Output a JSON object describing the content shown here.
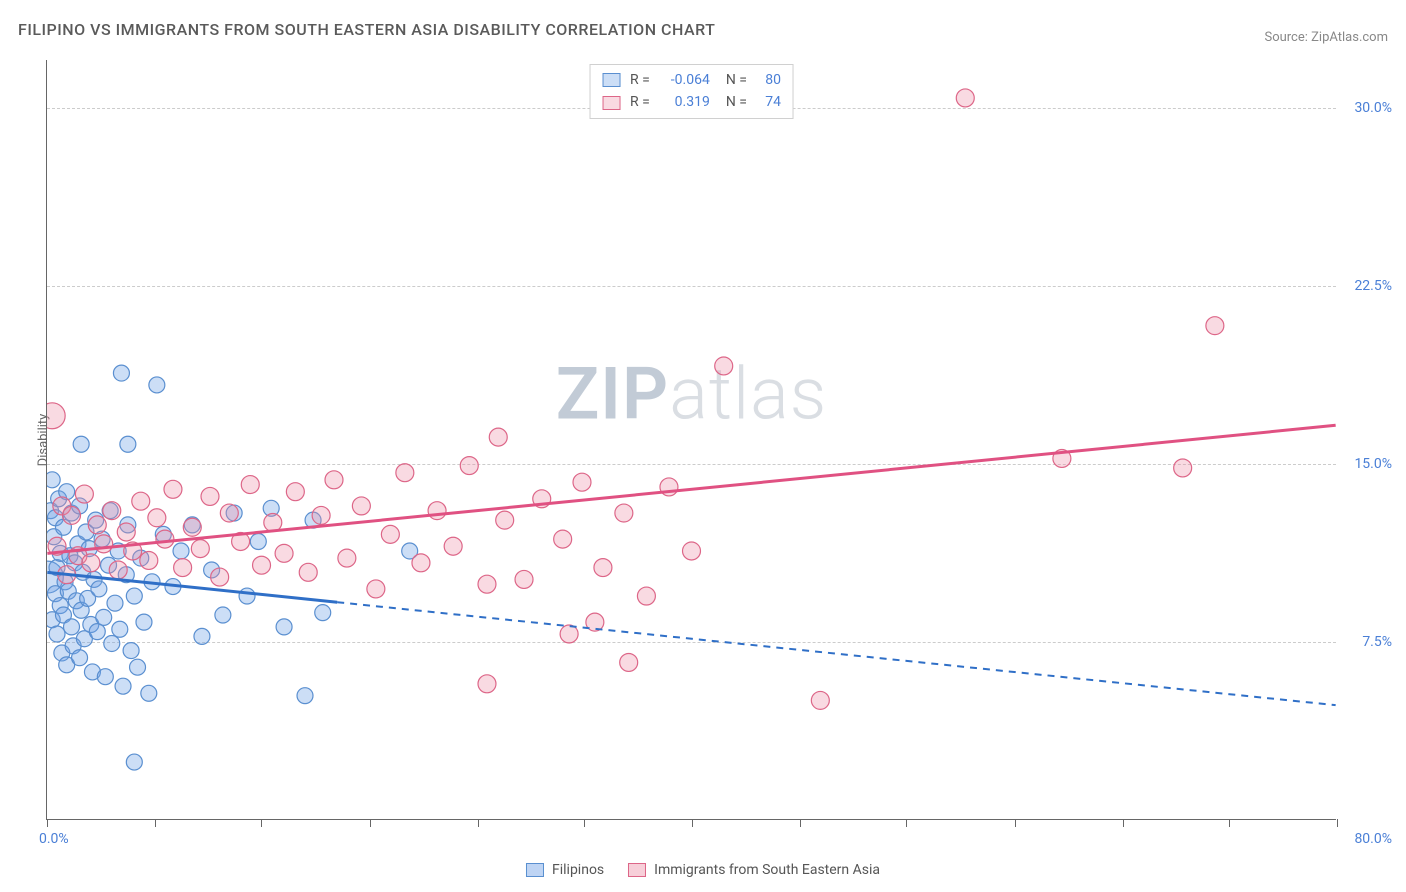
{
  "title": "FILIPINO VS IMMIGRANTS FROM SOUTH EASTERN ASIA DISABILITY CORRELATION CHART",
  "source": "Source: ZipAtlas.com",
  "watermark_zip": "ZIP",
  "watermark_atlas": "atlas",
  "y_axis_label": "Disability",
  "chart": {
    "type": "scatter",
    "background_color": "#ffffff",
    "grid_color": "#cccccc",
    "grid_style": "dashed",
    "xlim": [
      0,
      80
    ],
    "ylim": [
      0,
      32
    ],
    "x_tick_positions": [
      0,
      6.7,
      13.3,
      20,
      26.7,
      33.3,
      40,
      46.7,
      53.3,
      60,
      66.7,
      73.3,
      80
    ],
    "x_start_label": "0.0%",
    "x_end_label": "80.0%",
    "y_ticks": [
      {
        "pos": 7.5,
        "label": "7.5%"
      },
      {
        "pos": 15.0,
        "label": "15.0%"
      },
      {
        "pos": 22.5,
        "label": "22.5%"
      },
      {
        "pos": 30.0,
        "label": "30.0%"
      }
    ],
    "series": [
      {
        "name": "Filipinos",
        "color_fill": "rgba(110,160,230,0.35)",
        "color_stroke": "#5a8fd0",
        "marker_radius": 8,
        "R": "-0.064",
        "N": "80",
        "trend": {
          "x1": 0,
          "y1": 10.4,
          "x2": 80,
          "y2": 4.8,
          "solid_until_x": 18,
          "color": "#2f6fc7",
          "width": 3
        },
        "points": [
          [
            0.0,
            10.2,
            16
          ],
          [
            0.2,
            13.0,
            8
          ],
          [
            0.3,
            14.3,
            8
          ],
          [
            0.3,
            8.4,
            8
          ],
          [
            0.4,
            11.9,
            8
          ],
          [
            0.5,
            12.7,
            8
          ],
          [
            0.5,
            9.5,
            8
          ],
          [
            0.6,
            7.8,
            8
          ],
          [
            0.6,
            10.6,
            8
          ],
          [
            0.7,
            13.5,
            8
          ],
          [
            0.8,
            9.0,
            8
          ],
          [
            0.8,
            11.2,
            8
          ],
          [
            0.9,
            7.0,
            8
          ],
          [
            1.0,
            12.3,
            8
          ],
          [
            1.0,
            8.6,
            8
          ],
          [
            1.1,
            10.0,
            8
          ],
          [
            1.2,
            13.8,
            8
          ],
          [
            1.2,
            6.5,
            8
          ],
          [
            1.3,
            9.6,
            8
          ],
          [
            1.4,
            11.1,
            8
          ],
          [
            1.5,
            8.1,
            8
          ],
          [
            1.5,
            12.9,
            8
          ],
          [
            1.6,
            7.3,
            8
          ],
          [
            1.7,
            10.8,
            8
          ],
          [
            1.8,
            9.2,
            8
          ],
          [
            1.9,
            11.6,
            8
          ],
          [
            2.0,
            6.8,
            8
          ],
          [
            2.0,
            13.2,
            8
          ],
          [
            2.1,
            8.8,
            8
          ],
          [
            2.2,
            10.4,
            8
          ],
          [
            2.3,
            7.6,
            8
          ],
          [
            2.4,
            12.1,
            8
          ],
          [
            2.5,
            9.3,
            8
          ],
          [
            2.6,
            11.4,
            8
          ],
          [
            2.7,
            8.2,
            8
          ],
          [
            2.8,
            6.2,
            8
          ],
          [
            2.9,
            10.1,
            8
          ],
          [
            3.0,
            12.6,
            8
          ],
          [
            3.1,
            7.9,
            8
          ],
          [
            3.2,
            9.7,
            8
          ],
          [
            3.4,
            11.8,
            8
          ],
          [
            3.5,
            8.5,
            8
          ],
          [
            3.6,
            6.0,
            8
          ],
          [
            3.8,
            10.7,
            8
          ],
          [
            3.9,
            13.0,
            8
          ],
          [
            4.0,
            7.4,
            8
          ],
          [
            4.2,
            9.1,
            8
          ],
          [
            4.4,
            11.3,
            8
          ],
          [
            4.5,
            8.0,
            8
          ],
          [
            4.7,
            5.6,
            8
          ],
          [
            4.9,
            10.3,
            8
          ],
          [
            5.0,
            12.4,
            8
          ],
          [
            5.2,
            7.1,
            8
          ],
          [
            5.4,
            9.4,
            8
          ],
          [
            5.6,
            6.4,
            8
          ],
          [
            5.8,
            11.0,
            8
          ],
          [
            6.0,
            8.3,
            8
          ],
          [
            6.3,
            5.3,
            8
          ],
          [
            6.5,
            10.0,
            8
          ],
          [
            4.6,
            18.8,
            8
          ],
          [
            6.8,
            18.3,
            8
          ],
          [
            7.2,
            12.0,
            8
          ],
          [
            7.8,
            9.8,
            8
          ],
          [
            8.3,
            11.3,
            8
          ],
          [
            9.0,
            12.4,
            8
          ],
          [
            9.6,
            7.7,
            8
          ],
          [
            10.2,
            10.5,
            8
          ],
          [
            10.9,
            8.6,
            8
          ],
          [
            11.6,
            12.9,
            8
          ],
          [
            12.4,
            9.4,
            8
          ],
          [
            13.1,
            11.7,
            8
          ],
          [
            13.9,
            13.1,
            8
          ],
          [
            14.7,
            8.1,
            8
          ],
          [
            5.0,
            15.8,
            8
          ],
          [
            2.1,
            15.8,
            8
          ],
          [
            5.4,
            2.4,
            8
          ],
          [
            16.0,
            5.2,
            8
          ],
          [
            16.5,
            12.6,
            8
          ],
          [
            17.1,
            8.7,
            8
          ],
          [
            22.5,
            11.3,
            8
          ]
        ]
      },
      {
        "name": "Immigrants from South Eastern Asia",
        "color_fill": "rgba(235,140,165,0.32)",
        "color_stroke": "#dd6688",
        "marker_radius": 9,
        "R": "0.319",
        "N": "74",
        "trend": {
          "x1": 0,
          "y1": 11.2,
          "x2": 80,
          "y2": 16.6,
          "solid_until_x": 80,
          "color": "#e05182",
          "width": 3
        },
        "points": [
          [
            0.3,
            17.0,
            13
          ],
          [
            0.6,
            11.5,
            9
          ],
          [
            0.9,
            13.2,
            9
          ],
          [
            1.2,
            10.3,
            9
          ],
          [
            1.5,
            12.8,
            9
          ],
          [
            1.9,
            11.1,
            9
          ],
          [
            2.3,
            13.7,
            9
          ],
          [
            2.7,
            10.8,
            9
          ],
          [
            3.1,
            12.4,
            9
          ],
          [
            3.5,
            11.6,
            9
          ],
          [
            4.0,
            13.0,
            9
          ],
          [
            4.4,
            10.5,
            9
          ],
          [
            4.9,
            12.1,
            9
          ],
          [
            5.3,
            11.3,
            9
          ],
          [
            5.8,
            13.4,
            9
          ],
          [
            6.3,
            10.9,
            9
          ],
          [
            6.8,
            12.7,
            9
          ],
          [
            7.3,
            11.8,
            9
          ],
          [
            7.8,
            13.9,
            9
          ],
          [
            8.4,
            10.6,
            9
          ],
          [
            9.0,
            12.3,
            9
          ],
          [
            9.5,
            11.4,
            9
          ],
          [
            10.1,
            13.6,
            9
          ],
          [
            10.7,
            10.2,
            9
          ],
          [
            11.3,
            12.9,
            9
          ],
          [
            12.0,
            11.7,
            9
          ],
          [
            12.6,
            14.1,
            9
          ],
          [
            13.3,
            10.7,
            9
          ],
          [
            14.0,
            12.5,
            9
          ],
          [
            14.7,
            11.2,
            9
          ],
          [
            15.4,
            13.8,
            9
          ],
          [
            16.2,
            10.4,
            9
          ],
          [
            17.0,
            12.8,
            9
          ],
          [
            17.8,
            14.3,
            9
          ],
          [
            18.6,
            11.0,
            9
          ],
          [
            19.5,
            13.2,
            9
          ],
          [
            20.4,
            9.7,
            9
          ],
          [
            21.3,
            12.0,
            9
          ],
          [
            22.2,
            14.6,
            9
          ],
          [
            23.2,
            10.8,
            9
          ],
          [
            24.2,
            13.0,
            9
          ],
          [
            25.2,
            11.5,
            9
          ],
          [
            26.2,
            14.9,
            9
          ],
          [
            27.3,
            9.9,
            9
          ],
          [
            28.0,
            16.1,
            9
          ],
          [
            28.4,
            12.6,
            9
          ],
          [
            29.6,
            10.1,
            9
          ],
          [
            30.7,
            13.5,
            9
          ],
          [
            32.0,
            11.8,
            9
          ],
          [
            33.2,
            14.2,
            9
          ],
          [
            34.0,
            8.3,
            9
          ],
          [
            34.5,
            10.6,
            9
          ],
          [
            35.8,
            12.9,
            9
          ],
          [
            37.2,
            9.4,
            9
          ],
          [
            38.6,
            14.0,
            9
          ],
          [
            40.0,
            11.3,
            9
          ],
          [
            32.4,
            7.8,
            9
          ],
          [
            27.3,
            5.7,
            9
          ],
          [
            36.1,
            6.6,
            9
          ],
          [
            42.0,
            19.1,
            9
          ],
          [
            48.0,
            5.0,
            9
          ],
          [
            57.0,
            30.4,
            9
          ],
          [
            63.0,
            15.2,
            9
          ],
          [
            70.5,
            14.8,
            9
          ],
          [
            72.5,
            20.8,
            9
          ]
        ]
      }
    ]
  },
  "legend_bottom": [
    {
      "label": "Filipinos",
      "fill": "rgba(110,160,230,0.45)",
      "stroke": "#5a8fd0"
    },
    {
      "label": "Immigrants from South Eastern Asia",
      "fill": "rgba(235,140,165,0.42)",
      "stroke": "#dd6688"
    }
  ]
}
